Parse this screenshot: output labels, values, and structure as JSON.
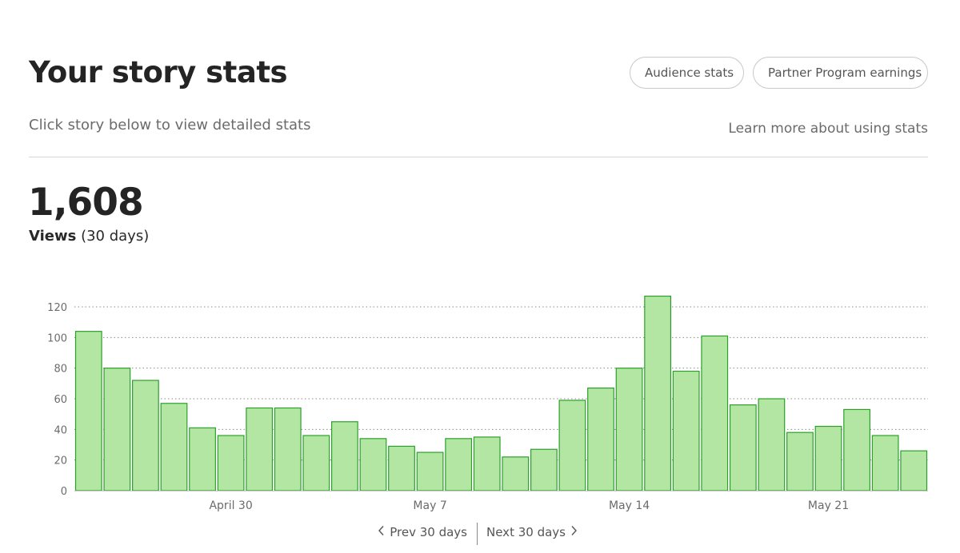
{
  "header": {
    "title": "Your story stats",
    "buttons": {
      "audience": "Audience stats",
      "partner": "Partner Program earnings"
    },
    "subtitle": "Click story below to view detailed stats",
    "learn_more": "Learn more about using stats"
  },
  "summary": {
    "total": "1,608",
    "label_bold": "Views",
    "label_rest": "(30 days)"
  },
  "pager": {
    "prev": "Prev 30 days",
    "next": "Next 30 days",
    "prev_icon": "chevron-left-icon",
    "next_icon": "chevron-right-icon"
  },
  "colors": {
    "bar_fill": "#b3e6a3",
    "bar_stroke": "#2ba02b",
    "grid": "#8c8c8c",
    "text": "#6b6b6b"
  },
  "chart_data": {
    "type": "bar",
    "title": "",
    "xlabel": "",
    "ylabel": "",
    "ylim": [
      0,
      120
    ],
    "yticks": [
      0,
      20,
      40,
      60,
      80,
      100,
      120
    ],
    "grid": "horizontal dotted",
    "x_tick_labels": [
      {
        "label": "April 30",
        "index": 5.5
      },
      {
        "label": "May 7",
        "index": 12.5
      },
      {
        "label": "May 14",
        "index": 19.5
      },
      {
        "label": "May 21",
        "index": 26.5
      }
    ],
    "values": [
      104,
      80,
      72,
      57,
      41,
      36,
      54,
      54,
      36,
      45,
      34,
      29,
      25,
      34,
      35,
      22,
      27,
      59,
      67,
      80,
      127,
      78,
      101,
      56,
      60,
      38,
      42,
      53,
      36,
      26
    ]
  }
}
